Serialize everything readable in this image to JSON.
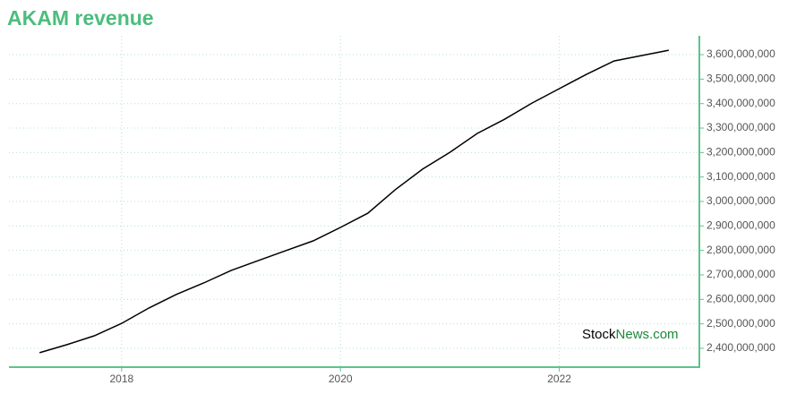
{
  "chart_data": {
    "type": "line",
    "title": "AKAM revenue",
    "x": [
      2017.25,
      2017.5,
      2017.75,
      2018.0,
      2018.25,
      2018.5,
      2018.75,
      2019.0,
      2019.25,
      2019.5,
      2019.75,
      2020.0,
      2020.25,
      2020.5,
      2020.75,
      2021.0,
      2021.25,
      2021.5,
      2021.75,
      2022.0,
      2022.25,
      2022.5,
      2022.75,
      2023.0
    ],
    "series": [
      {
        "name": "AKAM revenue",
        "color": "#000000",
        "values": [
          2382000000,
          2415000000,
          2451000000,
          2502000000,
          2565000000,
          2620000000,
          2667000000,
          2718000000,
          2759000000,
          2799000000,
          2839000000,
          2894000000,
          2952000000,
          3048000000,
          3132000000,
          3201000000,
          3278000000,
          3336000000,
          3402000000,
          3461000000,
          3520000000,
          3574000000,
          3596000000,
          3618000000
        ]
      }
    ],
    "xlim": [
      2016.97,
      2023.28
    ],
    "xticks": [
      2018,
      2020,
      2022
    ],
    "ylim": [
      2323000000,
      3677000000
    ],
    "yticks": [
      {
        "value": 2400000000,
        "label": "2,400,000,000"
      },
      {
        "value": 2500000000,
        "label": "2,500,000,000"
      },
      {
        "value": 2600000000,
        "label": "2,600,000,000"
      },
      {
        "value": 2700000000,
        "label": "2,700,000,000"
      },
      {
        "value": 2800000000,
        "label": "2,800,000,000"
      },
      {
        "value": 2900000000,
        "label": "2,900,000,000"
      },
      {
        "value": 3000000000,
        "label": "3,000,000,000"
      },
      {
        "value": 3100000000,
        "label": "3,100,000,000"
      },
      {
        "value": 3200000000,
        "label": "3,200,000,000"
      },
      {
        "value": 3300000000,
        "label": "3,300,000,000"
      },
      {
        "value": 3400000000,
        "label": "3,400,000,000"
      },
      {
        "value": 3500000000,
        "label": "3,500,000,000"
      },
      {
        "value": 3600000000,
        "label": "3,600,000,000"
      }
    ],
    "grid": true,
    "watermark": {
      "part1": "Stock",
      "part2": "News",
      "part3": ".com"
    }
  }
}
